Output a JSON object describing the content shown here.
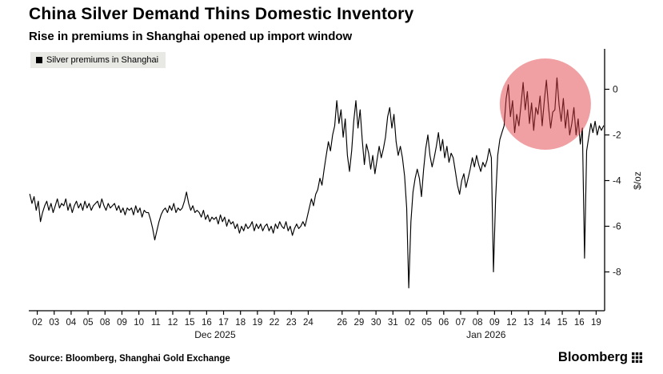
{
  "footer": {
    "source": "Source: Bloomberg, Shanghai Gold Exchange",
    "brand": "Bloomberg"
  },
  "chart_data": {
    "type": "line",
    "title": "China Silver Demand Thins Domestic Inventory",
    "subtitle": "Rise in premiums in Shanghai opened up import window",
    "legend_position": "top-left",
    "grid": false,
    "ylim": [
      -9.7,
      1.7
    ],
    "y_axis": {
      "title": "$/oz",
      "side": "right",
      "ticks": [
        {
          "label": "0",
          "value": 0
        },
        {
          "label": "-2",
          "value": -2
        },
        {
          "label": "-4",
          "value": -4
        },
        {
          "label": "-6",
          "value": -6
        },
        {
          "label": "-8",
          "value": -8
        }
      ]
    },
    "x_axis": {
      "ticks": [
        {
          "label": "02",
          "day": 0
        },
        {
          "label": "03",
          "day": 1
        },
        {
          "label": "04",
          "day": 2
        },
        {
          "label": "05",
          "day": 3
        },
        {
          "label": "08",
          "day": 4
        },
        {
          "label": "09",
          "day": 5
        },
        {
          "label": "10",
          "day": 6
        },
        {
          "label": "11",
          "day": 7
        },
        {
          "label": "12",
          "day": 8
        },
        {
          "label": "15",
          "day": 9
        },
        {
          "label": "16",
          "day": 10
        },
        {
          "label": "17",
          "day": 11
        },
        {
          "label": "18",
          "day": 12
        },
        {
          "label": "19",
          "day": 13
        },
        {
          "label": "22",
          "day": 14
        },
        {
          "label": "23",
          "day": 15
        },
        {
          "label": "24",
          "day": 16
        },
        {
          "label": "26",
          "day": 18
        },
        {
          "label": "29",
          "day": 19
        },
        {
          "label": "30",
          "day": 20
        },
        {
          "label": "31",
          "day": 21
        },
        {
          "label": "02",
          "day": 22
        },
        {
          "label": "05",
          "day": 23
        },
        {
          "label": "06",
          "day": 24
        },
        {
          "label": "07",
          "day": 25
        },
        {
          "label": "08",
          "day": 26
        },
        {
          "label": "09",
          "day": 27
        },
        {
          "label": "12",
          "day": 28
        },
        {
          "label": "13",
          "day": 29
        },
        {
          "label": "14",
          "day": 30
        },
        {
          "label": "15",
          "day": 31
        },
        {
          "label": "16",
          "day": 32
        },
        {
          "label": "19",
          "day": 33
        }
      ],
      "month_labels": [
        {
          "label": "Dec 2025",
          "day": 10.5
        },
        {
          "label": "Jan 2026",
          "day": 26.5
        }
      ]
    },
    "series": [
      {
        "name": "Silver premiums in Shanghai",
        "color": "#000000",
        "unit": "$/oz",
        "values_by_day": [
          [
            -4.6,
            -5.0,
            -4.7,
            -5.3,
            -4.9,
            -5.8,
            -5.4,
            -5.1
          ],
          [
            -4.9,
            -5.3,
            -5.0,
            -5.4,
            -5.1,
            -4.8,
            -5.2,
            -5.0
          ],
          [
            -5.1,
            -4.8,
            -5.3,
            -5.0,
            -5.4,
            -5.1,
            -4.9,
            -5.2
          ],
          [
            -5.0,
            -5.3,
            -4.9,
            -5.2,
            -5.0,
            -5.3,
            -5.1,
            -5.0
          ],
          [
            -4.9,
            -5.2,
            -4.8,
            -5.1,
            -5.3,
            -5.0,
            -5.2,
            -5.1
          ],
          [
            -5.0,
            -5.3,
            -5.1,
            -5.4,
            -5.2,
            -5.5,
            -5.2,
            -5.3
          ],
          [
            -5.2,
            -5.5,
            -5.1,
            -5.4,
            -5.2,
            -5.6,
            -5.3,
            -5.4
          ],
          [
            -5.4,
            -5.7,
            -6.1,
            -6.6,
            -6.2,
            -5.8,
            -5.5,
            -5.3
          ],
          [
            -5.2,
            -5.4,
            -5.1,
            -5.3,
            -5.0,
            -5.4,
            -5.2,
            -5.3
          ],
          [
            -5.2,
            -4.9,
            -4.5,
            -5.0,
            -5.3,
            -5.1,
            -5.4,
            -5.3
          ],
          [
            -5.4,
            -5.6,
            -5.3,
            -5.7,
            -5.5,
            -5.8,
            -5.6,
            -5.7
          ],
          [
            -5.6,
            -5.9,
            -5.5,
            -5.8,
            -5.6,
            -6.0,
            -5.7,
            -5.9
          ],
          [
            -5.8,
            -6.1,
            -5.9,
            -6.3,
            -6.0,
            -6.2,
            -5.9,
            -6.1
          ],
          [
            -6.0,
            -5.8,
            -6.2,
            -5.9,
            -6.1,
            -5.9,
            -6.2,
            -6.0
          ],
          [
            -5.9,
            -6.2,
            -6.0,
            -6.3,
            -5.9,
            -6.1,
            -5.8,
            -6.0
          ],
          [
            -6.1,
            -5.8,
            -6.2,
            -6.0,
            -6.4,
            -6.1,
            -5.9,
            -6.1
          ],
          [
            -6.0,
            -5.8,
            -6.0,
            -5.6,
            -5.2,
            -4.8,
            -5.1,
            -4.6
          ],
          [
            -4.4,
            -3.9,
            -4.2,
            -3.5,
            -2.9,
            -2.3,
            -2.7,
            -2.0
          ],
          [
            -1.6,
            -0.5,
            -1.5,
            -0.9,
            -2.1,
            -1.3,
            -2.9,
            -3.6
          ],
          [
            -2.7,
            -1.4,
            -0.5,
            -1.7,
            -0.9,
            -2.2,
            -3.3,
            -2.4
          ],
          [
            -2.8,
            -3.5,
            -2.9,
            -3.7,
            -3.1,
            -2.5,
            -3.0,
            -2.6
          ],
          [
            -2.1,
            -1.2,
            -0.8,
            -1.7,
            -1.1,
            -2.3,
            -2.9,
            -2.5
          ],
          [
            -3.0,
            -3.8,
            -5.2,
            -8.7,
            -5.8,
            -4.5,
            -3.9,
            -3.5
          ],
          [
            -3.9,
            -4.7,
            -3.5,
            -2.6,
            -2.0,
            -2.9,
            -3.4,
            -3.0
          ],
          [
            -2.5,
            -1.9,
            -2.7,
            -2.2,
            -3.0,
            -2.5,
            -3.2,
            -2.8
          ],
          [
            -3.0,
            -3.6,
            -4.2,
            -4.6,
            -4.0,
            -3.7,
            -4.3,
            -3.9
          ],
          [
            -3.5,
            -3.0,
            -3.4,
            -2.9,
            -3.3,
            -3.6,
            -3.2,
            -3.4
          ],
          [
            -3.1,
            -2.6,
            -3.0,
            -8.0,
            -4.8,
            -2.9,
            -2.2,
            -1.9
          ],
          [
            -1.6,
            -0.4,
            0.2,
            -1.2,
            -0.5,
            -1.9,
            -1.1,
            -1.6
          ],
          [
            -0.7,
            0.3,
            -0.9,
            -0.1,
            -1.5,
            -0.6,
            -1.8,
            -0.8
          ],
          [
            -1.1,
            -0.3,
            -1.6,
            -0.5,
            0.4,
            -0.8,
            -1.7,
            -1.0
          ],
          [
            -0.9,
            0.5,
            -0.7,
            -1.4,
            -0.4,
            -1.7,
            -0.9,
            -2.0
          ],
          [
            -1.5,
            -0.8,
            -2.0,
            -1.3,
            -2.4,
            -1.7,
            -7.4,
            -2.7
          ],
          [
            -2.1,
            -1.5,
            -1.9,
            -1.4,
            -2.0,
            -1.6,
            -1.8,
            -1.6
          ]
        ]
      }
    ],
    "annotation": {
      "shape": "circle",
      "meaning": "highlight of high premiums around Jan 12-16 (import window)",
      "center_day": 30,
      "center_value": -0.65,
      "radius": 57,
      "color": "#e0393f",
      "opacity": 0.48
    }
  }
}
